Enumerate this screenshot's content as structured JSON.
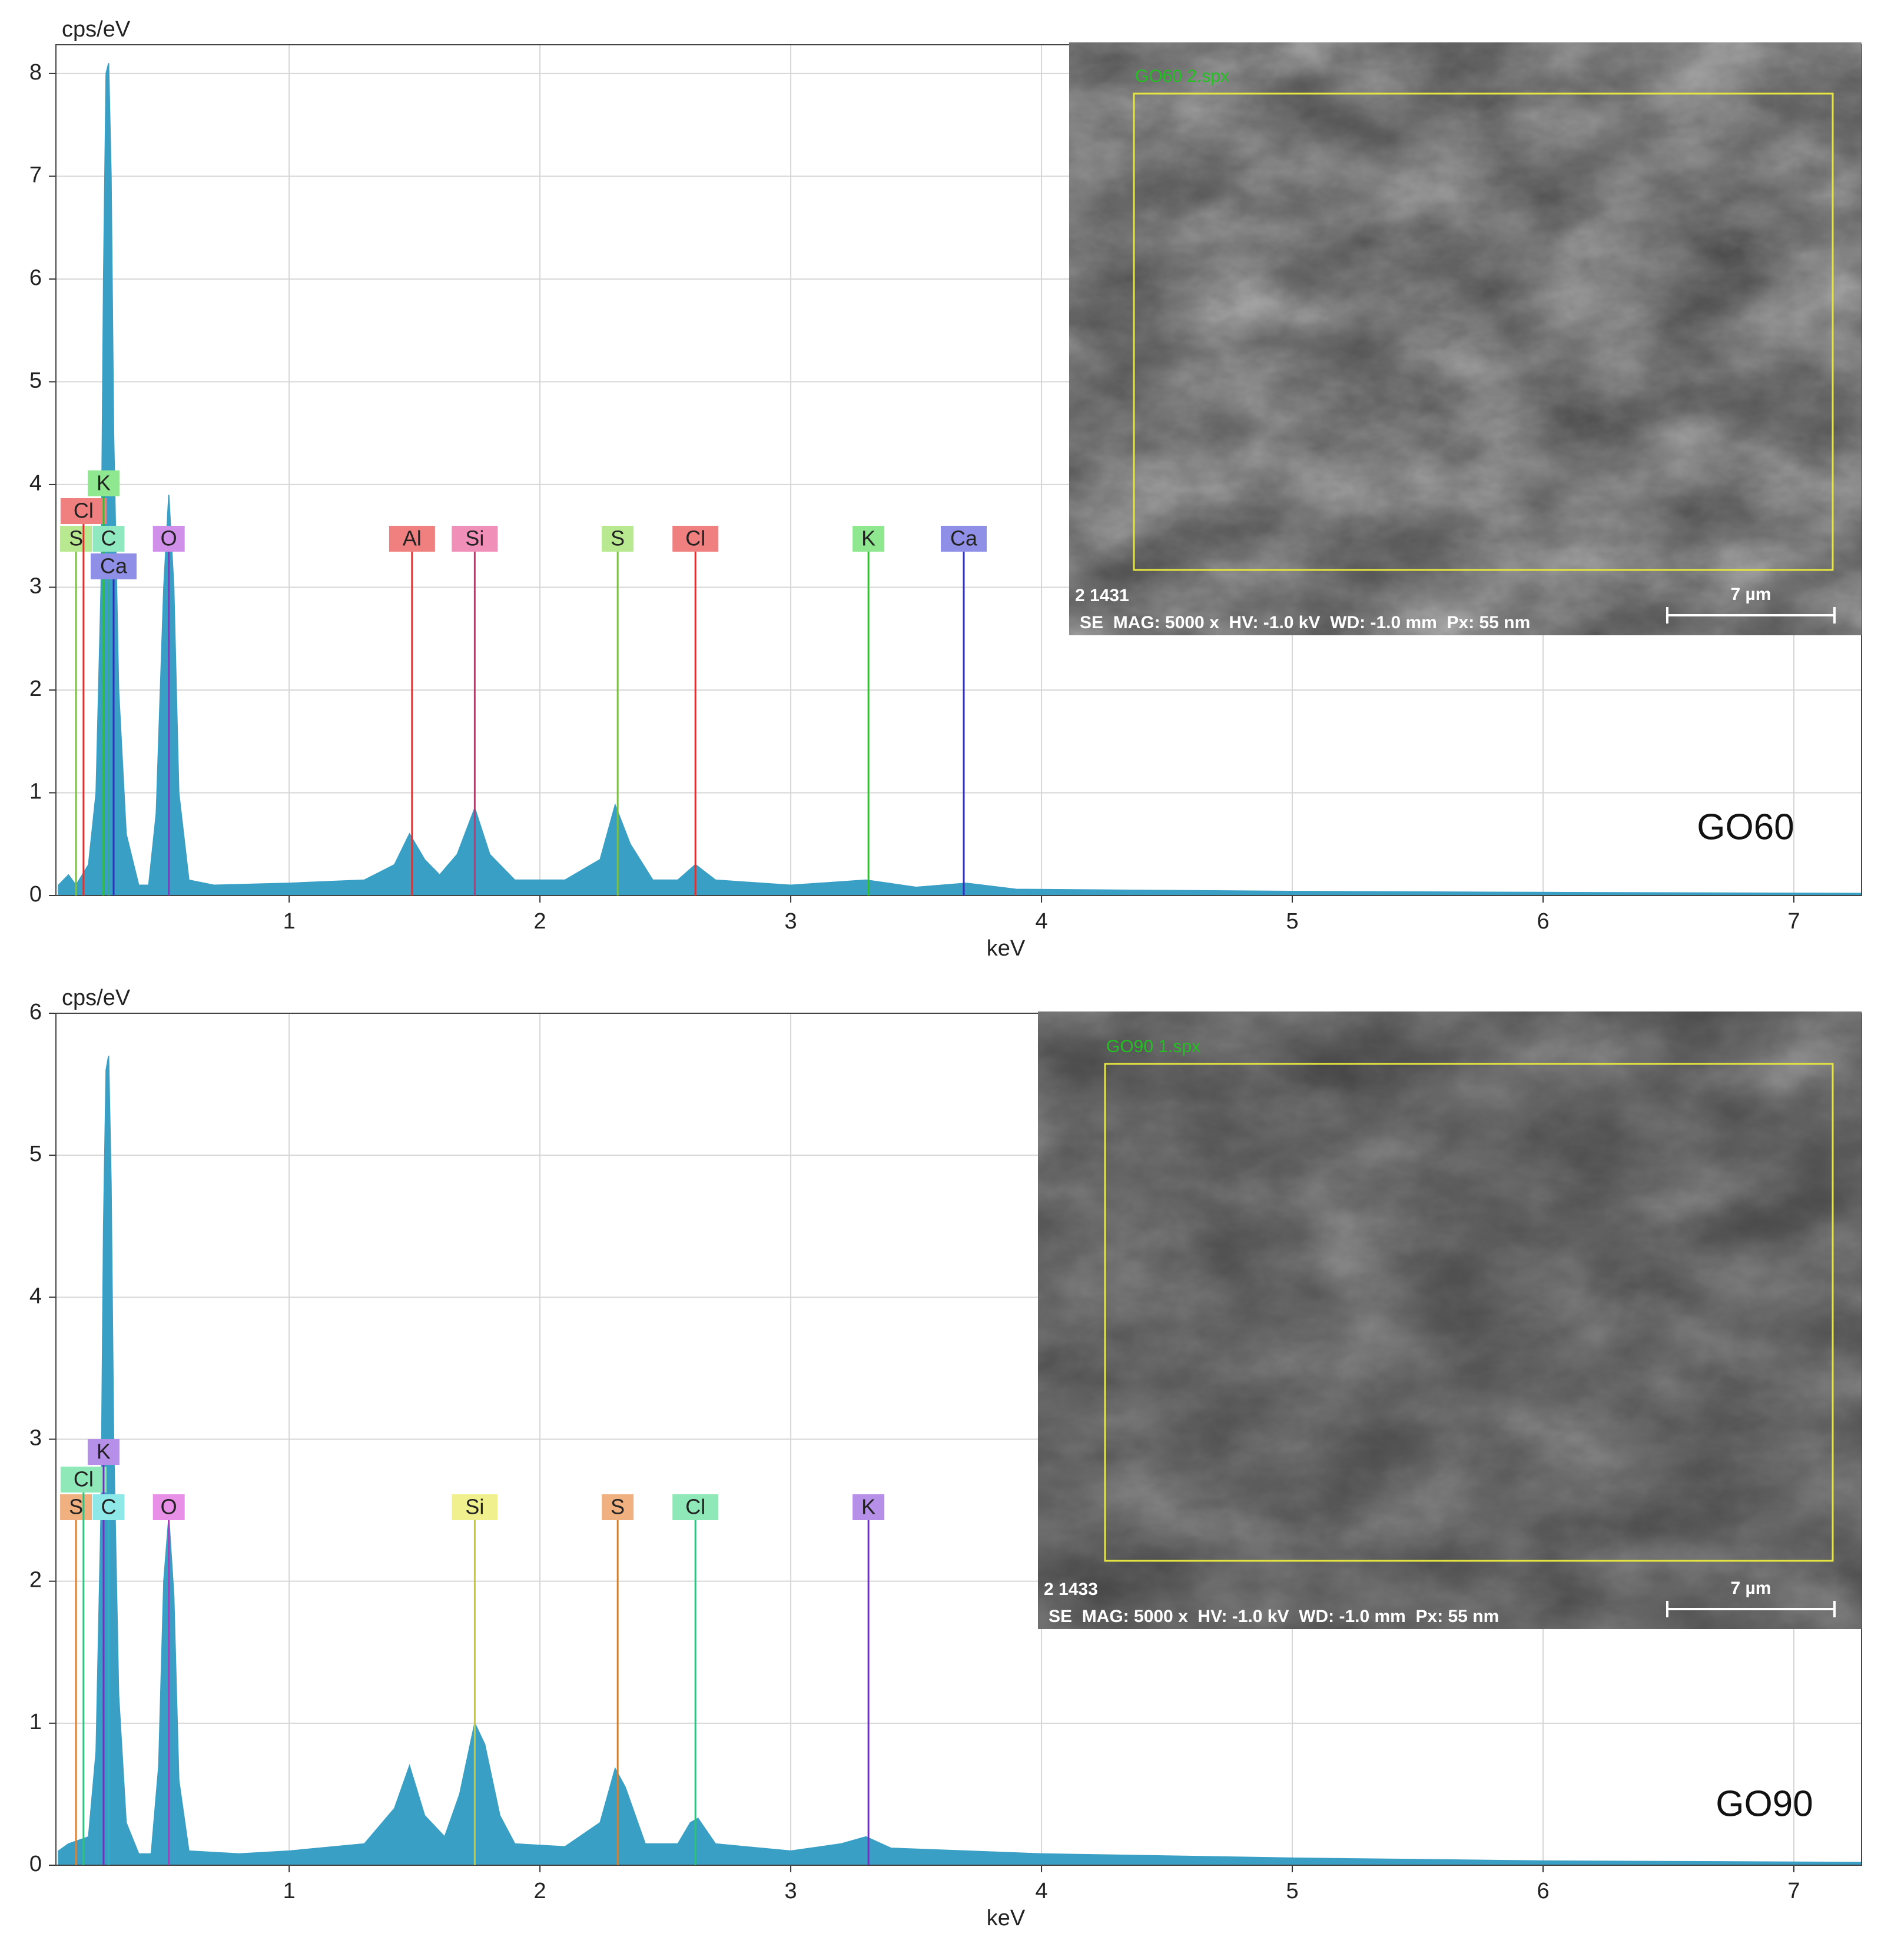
{
  "chart_data": [
    {
      "type": "area",
      "y_label": "cps/eV",
      "x_label": "keV",
      "sample_label": "GO60",
      "color": "#3a9fc4",
      "grid": true,
      "xlim": [
        0.07,
        7.27
      ],
      "ylim": [
        0,
        8.28
      ],
      "xticks": [
        1,
        2,
        3,
        4,
        5,
        6,
        7
      ],
      "yticks": [
        0,
        1,
        2,
        3,
        4,
        5,
        6,
        7,
        8
      ],
      "x": [
        0.08,
        0.12,
        0.15,
        0.2,
        0.23,
        0.25,
        0.26,
        0.27,
        0.28,
        0.29,
        0.3,
        0.32,
        0.35,
        0.4,
        0.44,
        0.47,
        0.5,
        0.52,
        0.54,
        0.56,
        0.6,
        0.7,
        1.0,
        1.3,
        1.42,
        1.48,
        1.54,
        1.6,
        1.67,
        1.74,
        1.8,
        1.9,
        2.1,
        2.24,
        2.3,
        2.36,
        2.45,
        2.55,
        2.62,
        2.7,
        3.0,
        3.3,
        3.5,
        3.7,
        3.9,
        5,
        6,
        7.27
      ],
      "values": [
        0.1,
        0.2,
        0.1,
        0.3,
        1.0,
        3.0,
        6.0,
        8.0,
        8.1,
        7.0,
        4.5,
        2.0,
        0.6,
        0.1,
        0.1,
        0.8,
        3.0,
        3.9,
        3.0,
        1.0,
        0.15,
        0.1,
        0.12,
        0.15,
        0.3,
        0.6,
        0.35,
        0.2,
        0.4,
        0.85,
        0.4,
        0.15,
        0.15,
        0.35,
        0.88,
        0.5,
        0.15,
        0.15,
        0.3,
        0.15,
        0.1,
        0.15,
        0.08,
        0.12,
        0.06,
        0.04,
        0.03,
        0.02
      ],
      "markers": [
        {
          "label": "S",
          "energy": 0.15,
          "color": "#b8e88f",
          "line_color": "#7cc040"
        },
        {
          "label": "Cl",
          "energy": 0.18,
          "color": "#f08080",
          "line_color": "#e03030"
        },
        {
          "label": "K",
          "energy": 0.26,
          "color": "#8fe88f",
          "line_color": "#30c030"
        },
        {
          "label": "C",
          "energy": 0.28,
          "color": "#8fe8c0",
          "line_color": "#30b080"
        },
        {
          "label": "Ca",
          "energy": 0.3,
          "color": "#8f8fe8",
          "line_color": "#3030c0"
        },
        {
          "label": "O",
          "energy": 0.52,
          "color": "#d08fe8",
          "line_color": "#9030c0"
        },
        {
          "label": "Al",
          "energy": 1.49,
          "color": "#f08080",
          "line_color": "#e03030"
        },
        {
          "label": "Si",
          "energy": 1.74,
          "color": "#f08fb8",
          "line_color": "#d03070"
        },
        {
          "label": "S",
          "energy": 2.31,
          "color": "#b8e88f",
          "line_color": "#7cc040"
        },
        {
          "label": "Cl",
          "energy": 2.62,
          "color": "#f08080",
          "line_color": "#e03030"
        },
        {
          "label": "K",
          "energy": 3.31,
          "color": "#8fe88f",
          "line_color": "#30c030"
        },
        {
          "label": "Ca",
          "energy": 3.69,
          "color": "#8f8fe8",
          "line_color": "#3030c0"
        }
      ],
      "inset": {
        "file": "GO60 2.spx",
        "image_id": "2 1431",
        "info": "SE  MAG: 5000 x  HV: -1.0 kV  WD: -1.0 mm  Px: 55 nm",
        "scale": "7 µm"
      }
    },
    {
      "type": "area",
      "y_label": "cps/eV",
      "x_label": "keV",
      "sample_label": "GO90",
      "color": "#3a9fc4",
      "grid": true,
      "xlim": [
        0.07,
        7.27
      ],
      "ylim": [
        0,
        6
      ],
      "xticks": [
        1,
        2,
        3,
        4,
        5,
        6,
        7
      ],
      "yticks": [
        0,
        1,
        2,
        3,
        4,
        5,
        6
      ],
      "x": [
        0.08,
        0.12,
        0.2,
        0.23,
        0.25,
        0.26,
        0.27,
        0.28,
        0.29,
        0.3,
        0.32,
        0.35,
        0.4,
        0.45,
        0.48,
        0.5,
        0.52,
        0.54,
        0.56,
        0.6,
        0.8,
        1.0,
        1.3,
        1.42,
        1.48,
        1.54,
        1.62,
        1.68,
        1.74,
        1.78,
        1.84,
        1.9,
        2.1,
        2.24,
        2.3,
        2.34,
        2.42,
        2.55,
        2.6,
        2.63,
        2.7,
        3.0,
        3.2,
        3.3,
        3.4,
        3.7,
        4,
        5,
        6,
        7.27
      ],
      "values": [
        0.1,
        0.15,
        0.2,
        0.8,
        2.5,
        4.5,
        5.6,
        5.7,
        4.8,
        3.0,
        1.2,
        0.3,
        0.08,
        0.08,
        0.7,
        2.0,
        2.45,
        1.9,
        0.6,
        0.1,
        0.08,
        0.1,
        0.15,
        0.4,
        0.7,
        0.35,
        0.2,
        0.5,
        1.0,
        0.85,
        0.35,
        0.15,
        0.13,
        0.3,
        0.68,
        0.55,
        0.15,
        0.15,
        0.3,
        0.33,
        0.15,
        0.1,
        0.15,
        0.2,
        0.12,
        0.1,
        0.08,
        0.05,
        0.03,
        0.02
      ],
      "markers": [
        {
          "label": "S",
          "energy": 0.15,
          "color": "#f0b080",
          "line_color": "#e08030"
        },
        {
          "label": "Cl",
          "energy": 0.18,
          "color": "#8fe8b8",
          "line_color": "#30c080"
        },
        {
          "label": "K",
          "energy": 0.26,
          "color": "#b58fe8",
          "line_color": "#7030c0"
        },
        {
          "label": "C",
          "energy": 0.28,
          "color": "#8fe8e8",
          "line_color": "#30b0c0"
        },
        {
          "label": "O",
          "energy": 0.52,
          "color": "#e88fe8",
          "line_color": "#c030c0"
        },
        {
          "label": "Si",
          "energy": 1.74,
          "color": "#f0f08f",
          "line_color": "#c8c830"
        },
        {
          "label": "S",
          "energy": 2.31,
          "color": "#f0b080",
          "line_color": "#d08030"
        },
        {
          "label": "Cl",
          "energy": 2.62,
          "color": "#8fe8b8",
          "line_color": "#30c080"
        },
        {
          "label": "K",
          "energy": 3.31,
          "color": "#b58fe8",
          "line_color": "#7030c0"
        }
      ],
      "inset": {
        "file": "GO90 1.spx",
        "image_id": "2 1433",
        "info": "SE  MAG: 5000 x  HV: -1.0 kV  WD: -1.0 mm  Px: 55 nm",
        "scale": "7 µm"
      }
    }
  ]
}
